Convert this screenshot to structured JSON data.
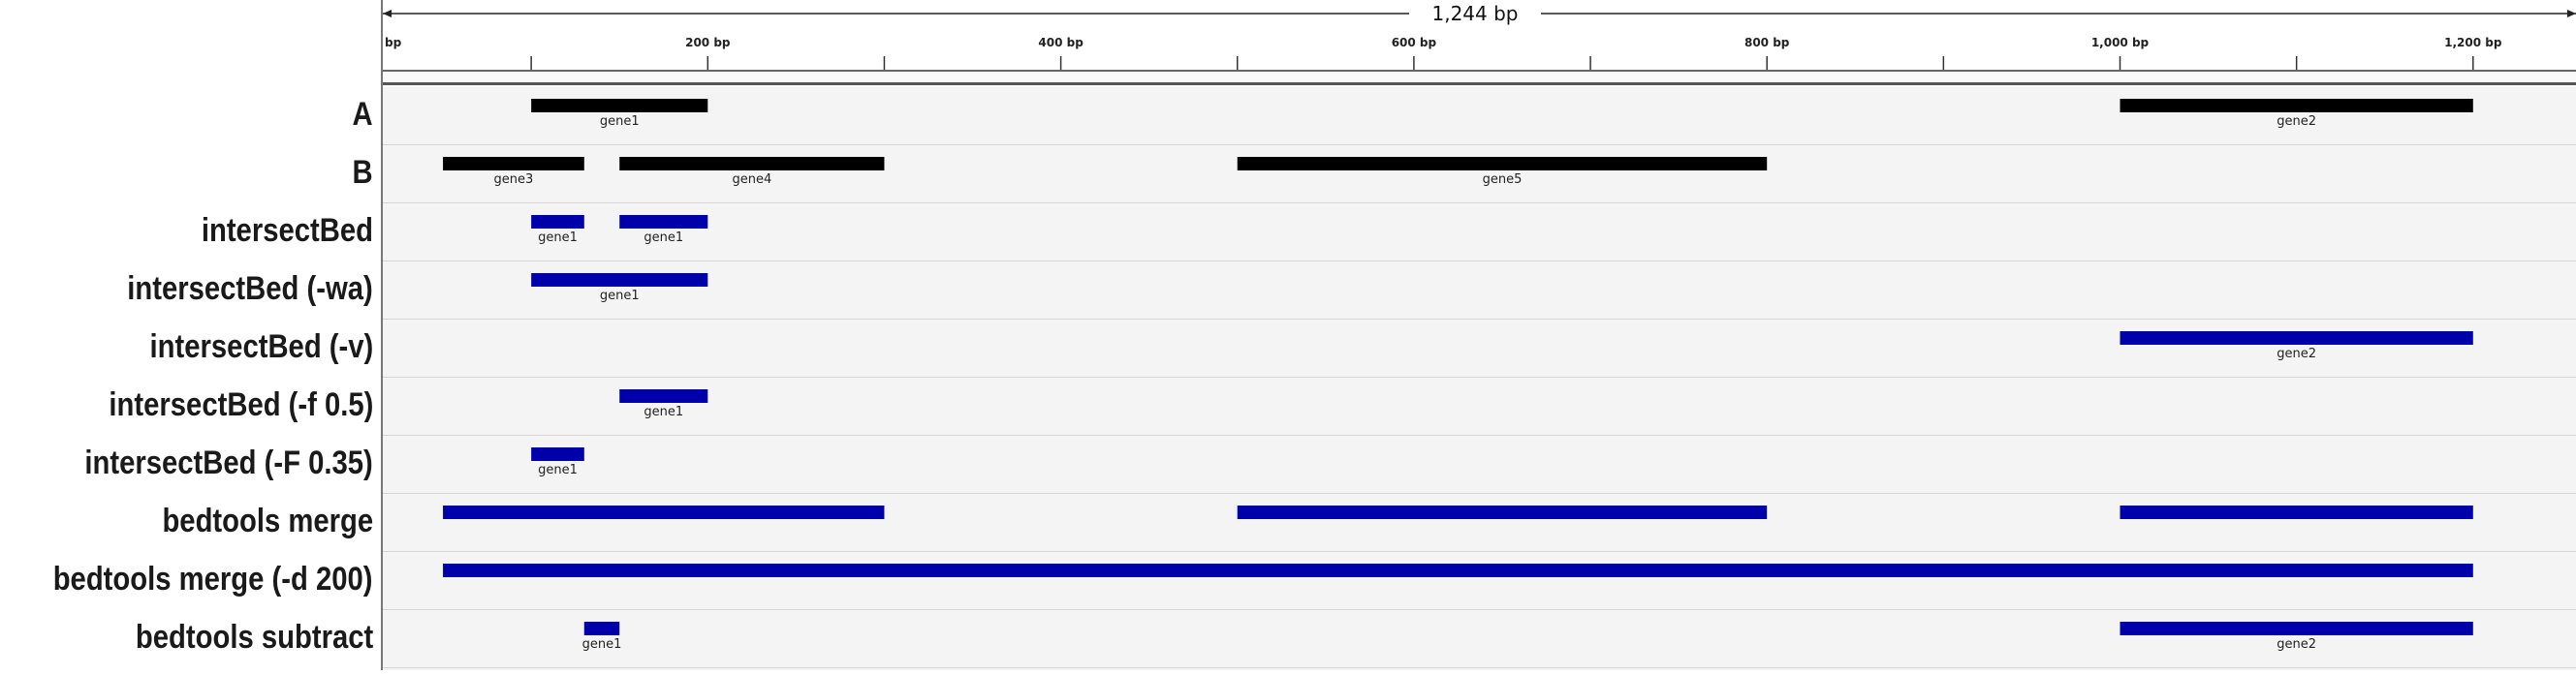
{
  "window": {
    "locus_span": "1,244 bp"
  },
  "colors": {
    "input_feature": "#000000",
    "result_feature": "#0000aa",
    "track_background": "#f4f4f4",
    "row_separator": "#d6d6d6"
  },
  "ruler": {
    "ticks": [
      {
        "bp": 0,
        "label": "bp"
      },
      {
        "bp": 200,
        "label": "200 bp"
      },
      {
        "bp": 400,
        "label": "400 bp"
      },
      {
        "bp": 600,
        "label": "600 bp"
      },
      {
        "bp": 800,
        "label": "800 bp"
      },
      {
        "bp": 1000,
        "label": "1,000 bp"
      },
      {
        "bp": 1200,
        "label": "1,200 bp"
      }
    ]
  },
  "tracks": [
    {
      "label": "A",
      "kind": "input",
      "features": [
        {
          "start": 100,
          "end": 200,
          "name": "gene1"
        },
        {
          "start": 1000,
          "end": 1200,
          "name": "gene2"
        }
      ]
    },
    {
      "label": "B",
      "kind": "input",
      "features": [
        {
          "start": 50,
          "end": 130,
          "name": "gene3"
        },
        {
          "start": 150,
          "end": 300,
          "name": "gene4"
        },
        {
          "start": 500,
          "end": 800,
          "name": "gene5"
        }
      ]
    },
    {
      "label": "intersectBed",
      "kind": "result",
      "features": [
        {
          "start": 100,
          "end": 130,
          "name": "gene1"
        },
        {
          "start": 150,
          "end": 200,
          "name": "gene1"
        }
      ]
    },
    {
      "label": "intersectBed (-wa)",
      "kind": "result",
      "features": [
        {
          "start": 100,
          "end": 200,
          "name": "gene1"
        }
      ]
    },
    {
      "label": "intersectBed (-v)",
      "kind": "result",
      "features": [
        {
          "start": 1000,
          "end": 1200,
          "name": "gene2"
        }
      ]
    },
    {
      "label": "intersectBed (-f 0.5)",
      "kind": "result",
      "features": [
        {
          "start": 150,
          "end": 200,
          "name": "gene1"
        }
      ]
    },
    {
      "label": "intersectBed (-F 0.35)",
      "kind": "result",
      "features": [
        {
          "start": 100,
          "end": 130,
          "name": "gene1"
        }
      ]
    },
    {
      "label": "bedtools merge",
      "kind": "result",
      "features": [
        {
          "start": 50,
          "end": 300,
          "name": ""
        },
        {
          "start": 500,
          "end": 800,
          "name": ""
        },
        {
          "start": 1000,
          "end": 1200,
          "name": ""
        }
      ]
    },
    {
      "label": "bedtools merge (-d 200)",
      "kind": "result",
      "features": [
        {
          "start": 50,
          "end": 1200,
          "name": ""
        }
      ]
    },
    {
      "label": "bedtools subtract",
      "kind": "result",
      "features": [
        {
          "start": 130,
          "end": 150,
          "name": "gene1"
        },
        {
          "start": 1000,
          "end": 1200,
          "name": "gene2"
        }
      ]
    }
  ]
}
